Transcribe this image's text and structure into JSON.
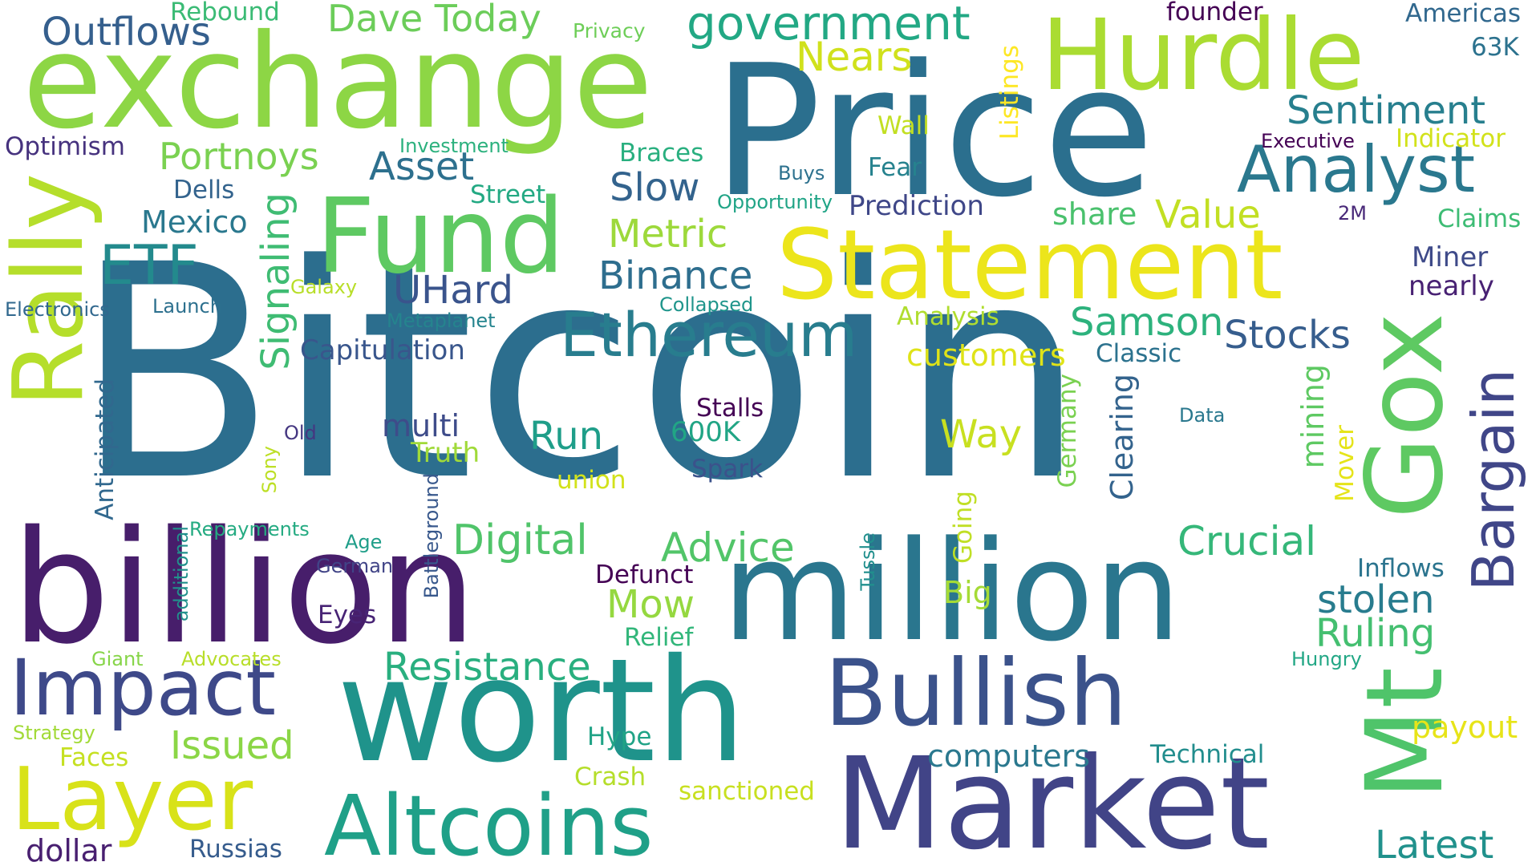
{
  "cloud": {
    "background": "#ffffff",
    "words": [
      {
        "text": "Bitcoin",
        "color": "#2c6e8e",
        "orientation": "horizontal"
      },
      {
        "text": "Price",
        "color": "#2b6f8e",
        "orientation": "horizontal"
      },
      {
        "text": "exchange",
        "color": "#8dd645",
        "orientation": "horizontal"
      },
      {
        "text": "billion",
        "color": "#471e6b",
        "orientation": "horizontal"
      },
      {
        "text": "million",
        "color": "#2a768e",
        "orientation": "horizontal"
      },
      {
        "text": "worth",
        "color": "#1f938b",
        "orientation": "horizontal"
      },
      {
        "text": "Market",
        "color": "#414487",
        "orientation": "horizontal"
      },
      {
        "text": "Statement",
        "color": "#ece51b",
        "orientation": "horizontal"
      },
      {
        "text": "Hurdle",
        "color": "#aadc32",
        "orientation": "horizontal"
      },
      {
        "text": "Fund",
        "color": "#5ec962",
        "orientation": "horizontal"
      },
      {
        "text": "Rally",
        "color": "#b5de2b",
        "orientation": "vertical"
      },
      {
        "text": "Mt",
        "color": "#4fc46a",
        "orientation": "vertical"
      },
      {
        "text": "Gox",
        "color": "#5ec962",
        "orientation": "vertical"
      },
      {
        "text": "Bullish",
        "color": "#3b528b",
        "orientation": "horizontal"
      },
      {
        "text": "Altcoins",
        "color": "#1fa088",
        "orientation": "horizontal"
      },
      {
        "text": "Layer",
        "color": "#d8e219",
        "orientation": "horizontal"
      },
      {
        "text": "Impact",
        "color": "#3e4989",
        "orientation": "horizontal"
      },
      {
        "text": "Analyst",
        "color": "#2a788e",
        "orientation": "horizontal"
      },
      {
        "text": "Ethereum",
        "color": "#287d8e",
        "orientation": "horizontal"
      },
      {
        "text": "Bargain",
        "color": "#404688",
        "orientation": "vertical"
      },
      {
        "text": "government",
        "color": "#22a884",
        "orientation": "horizontal"
      },
      {
        "text": "ETF",
        "color": "#238a8d",
        "orientation": "horizontal"
      },
      {
        "text": "Sentiment",
        "color": "#277f8e",
        "orientation": "horizontal"
      },
      {
        "text": "Outflows",
        "color": "#355f8d",
        "orientation": "horizontal"
      },
      {
        "text": "Dave Today",
        "color": "#6ccd5a",
        "orientation": "horizontal"
      },
      {
        "text": "Portnoys",
        "color": "#7ad151",
        "orientation": "horizontal"
      },
      {
        "text": "Asset",
        "color": "#2d708e",
        "orientation": "horizontal"
      },
      {
        "text": "Slow",
        "color": "#33638d",
        "orientation": "horizontal"
      },
      {
        "text": "Value",
        "color": "#c2df23",
        "orientation": "horizontal"
      },
      {
        "text": "Nears",
        "color": "#d0e11c",
        "orientation": "horizontal"
      },
      {
        "text": "Binance",
        "color": "#2e6e8e",
        "orientation": "horizontal"
      },
      {
        "text": "Metric",
        "color": "#9dd93b",
        "orientation": "horizontal"
      },
      {
        "text": "UHard",
        "color": "#3a548c",
        "orientation": "horizontal"
      },
      {
        "text": "Samson",
        "color": "#2db27d",
        "orientation": "horizontal"
      },
      {
        "text": "Stocks",
        "color": "#365d8d",
        "orientation": "horizontal"
      },
      {
        "text": "Signaling",
        "color": "#3fbc73",
        "orientation": "vertical"
      },
      {
        "text": "Resistance",
        "color": "#29af7f",
        "orientation": "horizontal"
      },
      {
        "text": "Digital",
        "color": "#50c46a",
        "orientation": "horizontal"
      },
      {
        "text": "Advice",
        "color": "#52c569",
        "orientation": "horizontal"
      },
      {
        "text": "Crucial",
        "color": "#35b779",
        "orientation": "horizontal"
      },
      {
        "text": "Run",
        "color": "#1f9e89",
        "orientation": "horizontal"
      },
      {
        "text": "Way",
        "color": "#c8e020",
        "orientation": "horizontal"
      },
      {
        "text": "Mow",
        "color": "#95d840",
        "orientation": "horizontal"
      },
      {
        "text": "stolen",
        "color": "#287c8e",
        "orientation": "horizontal"
      },
      {
        "text": "Ruling",
        "color": "#44bf70",
        "orientation": "horizontal"
      },
      {
        "text": "Issued",
        "color": "#8bd646",
        "orientation": "horizontal"
      },
      {
        "text": "Latest",
        "color": "#21918c",
        "orientation": "horizontal"
      },
      {
        "text": "dollar",
        "color": "#481f70",
        "orientation": "horizontal"
      },
      {
        "text": "Mexico",
        "color": "#2a788e",
        "orientation": "horizontal"
      },
      {
        "text": "Optimism",
        "color": "#46327e",
        "orientation": "horizontal"
      },
      {
        "text": "Dells",
        "color": "#33638d",
        "orientation": "horizontal"
      },
      {
        "text": "Rebound",
        "color": "#3bbb75",
        "orientation": "horizontal"
      },
      {
        "text": "Privacy",
        "color": "#6ece58",
        "orientation": "horizontal"
      },
      {
        "text": "founder",
        "color": "#440154",
        "orientation": "horizontal"
      },
      {
        "text": "Americas",
        "color": "#31688e",
        "orientation": "horizontal"
      },
      {
        "text": "63K",
        "color": "#2c728e",
        "orientation": "horizontal"
      },
      {
        "text": "Listings",
        "color": "#fde725",
        "orientation": "vertical"
      },
      {
        "text": "Wall",
        "color": "#c2df23",
        "orientation": "horizontal"
      },
      {
        "text": "Fear",
        "color": "#26828e",
        "orientation": "horizontal"
      },
      {
        "text": "Executive",
        "color": "#440154",
        "orientation": "horizontal"
      },
      {
        "text": "Indicator",
        "color": "#d2e21b",
        "orientation": "horizontal"
      },
      {
        "text": "Investment",
        "color": "#2cb17e",
        "orientation": "horizontal"
      },
      {
        "text": "Braces",
        "color": "#29af7f",
        "orientation": "horizontal"
      },
      {
        "text": "Buys",
        "color": "#2d718e",
        "orientation": "horizontal"
      },
      {
        "text": "Street",
        "color": "#23a983",
        "orientation": "horizontal"
      },
      {
        "text": "Opportunity",
        "color": "#20a486",
        "orientation": "horizontal"
      },
      {
        "text": "Prediction",
        "color": "#3f4788",
        "orientation": "horizontal"
      },
      {
        "text": "share",
        "color": "#4ac16d",
        "orientation": "horizontal"
      },
      {
        "text": "2M",
        "color": "#482878",
        "orientation": "horizontal"
      },
      {
        "text": "Claims",
        "color": "#3dbc74",
        "orientation": "horizontal"
      },
      {
        "text": "Miner",
        "color": "#3e4a89",
        "orientation": "horizontal"
      },
      {
        "text": "nearly",
        "color": "#482173",
        "orientation": "horizontal"
      },
      {
        "text": "Galaxy",
        "color": "#b8de29",
        "orientation": "horizontal"
      },
      {
        "text": "Electronics",
        "color": "#31688e",
        "orientation": "horizontal"
      },
      {
        "text": "Launch",
        "color": "#2d708e",
        "orientation": "horizontal"
      },
      {
        "text": "Collapsed",
        "color": "#1f958b",
        "orientation": "horizontal"
      },
      {
        "text": "Metaplanet",
        "color": "#25848e",
        "orientation": "horizontal"
      },
      {
        "text": "Analysis",
        "color": "#b0dd2f",
        "orientation": "horizontal"
      },
      {
        "text": "Capitulation",
        "color": "#39568c",
        "orientation": "horizontal"
      },
      {
        "text": "customers",
        "color": "#dfe318",
        "orientation": "horizontal"
      },
      {
        "text": "Classic",
        "color": "#2c728e",
        "orientation": "horizontal"
      },
      {
        "text": "multi",
        "color": "#3e4c8a",
        "orientation": "horizontal"
      },
      {
        "text": "Truth",
        "color": "#a0da39",
        "orientation": "horizontal"
      },
      {
        "text": "Stalls",
        "color": "#440154",
        "orientation": "horizontal"
      },
      {
        "text": "600K",
        "color": "#21a585",
        "orientation": "horizontal"
      },
      {
        "text": "Spark",
        "color": "#3b528b",
        "orientation": "horizontal"
      },
      {
        "text": "union",
        "color": "#d2e21b",
        "orientation": "horizontal"
      },
      {
        "text": "Old",
        "color": "#453781",
        "orientation": "horizontal"
      },
      {
        "text": "Sony",
        "color": "#bddf26",
        "orientation": "vertical"
      },
      {
        "text": "Anticipated",
        "color": "#31688e",
        "orientation": "vertical"
      },
      {
        "text": "Battleground",
        "color": "#38588c",
        "orientation": "vertical"
      },
      {
        "text": "Germany",
        "color": "#7ad151",
        "orientation": "vertical"
      },
      {
        "text": "Clearing",
        "color": "#33638d",
        "orientation": "vertical"
      },
      {
        "text": "mining",
        "color": "#5ec962",
        "orientation": "vertical"
      },
      {
        "text": "Mover",
        "color": "#e5e419",
        "orientation": "vertical"
      },
      {
        "text": "Data",
        "color": "#2a788e",
        "orientation": "horizontal"
      },
      {
        "text": "Repayments",
        "color": "#25ab82",
        "orientation": "horizontal"
      },
      {
        "text": "additional",
        "color": "#21918c",
        "orientation": "vertical"
      },
      {
        "text": "Age",
        "color": "#1f9e89",
        "orientation": "horizontal"
      },
      {
        "text": "German",
        "color": "#414487",
        "orientation": "horizontal"
      },
      {
        "text": "Defunct",
        "color": "#440154",
        "orientation": "horizontal"
      },
      {
        "text": "Going",
        "color": "#c0df25",
        "orientation": "vertical"
      },
      {
        "text": "Tussle",
        "color": "#218f8d",
        "orientation": "vertical"
      },
      {
        "text": "Big",
        "color": "#a5db36",
        "orientation": "horizontal"
      },
      {
        "text": "Inflows",
        "color": "#2b748e",
        "orientation": "horizontal"
      },
      {
        "text": "Eyes",
        "color": "#482475",
        "orientation": "horizontal"
      },
      {
        "text": "Relief",
        "color": "#32b67a",
        "orientation": "horizontal"
      },
      {
        "text": "Giant",
        "color": "#87d549",
        "orientation": "horizontal"
      },
      {
        "text": "Advocates",
        "color": "#b8de29",
        "orientation": "horizontal"
      },
      {
        "text": "Hungry",
        "color": "#22a785",
        "orientation": "horizontal"
      },
      {
        "text": "payout",
        "color": "#e7e419",
        "orientation": "horizontal"
      },
      {
        "text": "Strategy",
        "color": "#a2da37",
        "orientation": "horizontal"
      },
      {
        "text": "Hype",
        "color": "#20a386",
        "orientation": "horizontal"
      },
      {
        "text": "computers",
        "color": "#2a788e",
        "orientation": "horizontal"
      },
      {
        "text": "Technical",
        "color": "#228d8d",
        "orientation": "horizontal"
      },
      {
        "text": "Faces",
        "color": "#c5e021",
        "orientation": "horizontal"
      },
      {
        "text": "Crash",
        "color": "#b5de2b",
        "orientation": "horizontal"
      },
      {
        "text": "sanctioned",
        "color": "#c8e020",
        "orientation": "horizontal"
      },
      {
        "text": "Russias",
        "color": "#365c8d",
        "orientation": "horizontal"
      }
    ]
  }
}
